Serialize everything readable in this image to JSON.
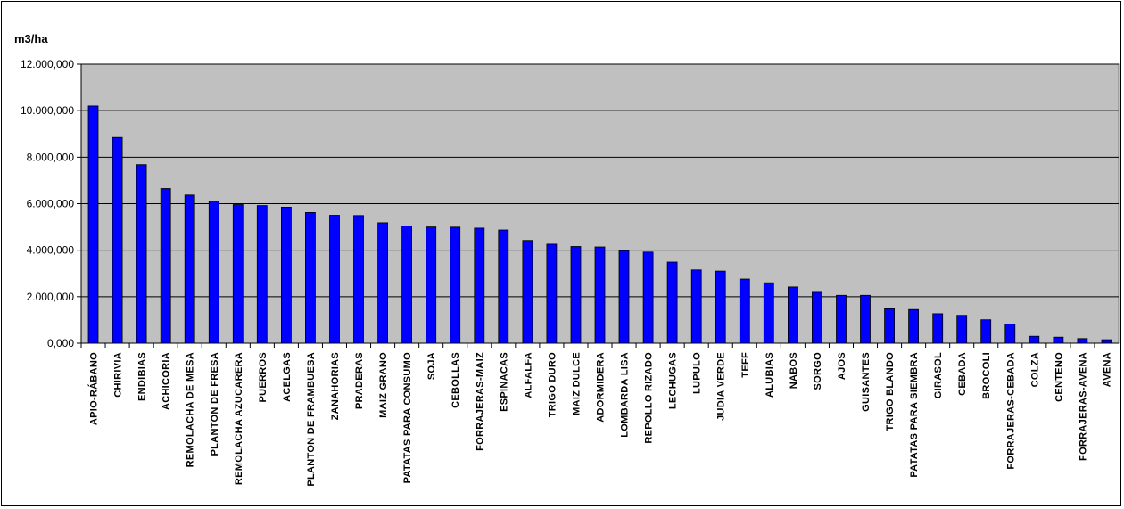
{
  "chart_data": {
    "type": "bar",
    "ylabel": "m3/ha",
    "ylim": [
      0,
      12000000
    ],
    "y_ticks": [
      0,
      2000000,
      4000000,
      6000000,
      8000000,
      10000000,
      12000000
    ],
    "y_tick_labels": [
      "0,000",
      "2.000,000",
      "4.000,000",
      "6.000,000",
      "8.000,000",
      "10.000,000",
      "12.000,000"
    ],
    "grid": true,
    "legend": "none",
    "colors": {
      "bar": "#0000ff",
      "bar_edge": "#000000",
      "plot_bg": "#c0c0c0",
      "grid": "#000000"
    },
    "categories": [
      "APIO-RÁBANO",
      "CHIRIVIA",
      "ENDIBIAS",
      "ACHICORIA",
      "REMOLACHA DE MESA",
      "PLANTON DE FRESA",
      "REMOLACHA AZUCARERA",
      "PUERROS",
      "ACELGAS",
      "PLANTON DE FRAMBUESA",
      "ZANAHORIAS",
      "PRADERAS",
      "MAIZ GRANO",
      "PATATAS PARA CONSUMO",
      "SOJA",
      "CEBOLLAS",
      "FORRAJERAS-MAIZ",
      "ESPINACAS",
      "ALFALFA",
      "TRIGO DURO",
      "MAIZ DULCE",
      "ADORMIDERA",
      "LOMBARDA LISA",
      "REPOLLO RIZADO",
      "LECHUGAS",
      "LUPULO",
      "JUDIA VERDE",
      "TEFF",
      "ALUBIAS",
      "NABOS",
      "SORGO",
      "AJOS",
      "GUISANTES",
      "TRIGO BLANDO",
      "PATATAS PARA SIEMBRA",
      "GIRASOL",
      "CEBADA",
      "BROCOLI",
      "FORRAJERAS-CEBADA",
      "COLZA",
      "CENTENO",
      "FORRAJERAS-AVENA",
      "AVENA"
    ],
    "values": [
      10200000,
      8850000,
      7680000,
      6650000,
      6370000,
      6110000,
      5960000,
      5920000,
      5850000,
      5620000,
      5500000,
      5490000,
      5180000,
      5040000,
      5000000,
      4990000,
      4950000,
      4870000,
      4420000,
      4260000,
      4160000,
      4140000,
      3980000,
      3920000,
      3490000,
      3150000,
      3100000,
      2760000,
      2600000,
      2420000,
      2190000,
      2060000,
      2060000,
      1480000,
      1450000,
      1270000,
      1200000,
      1010000,
      820000,
      300000,
      260000,
      200000,
      150000
    ]
  }
}
